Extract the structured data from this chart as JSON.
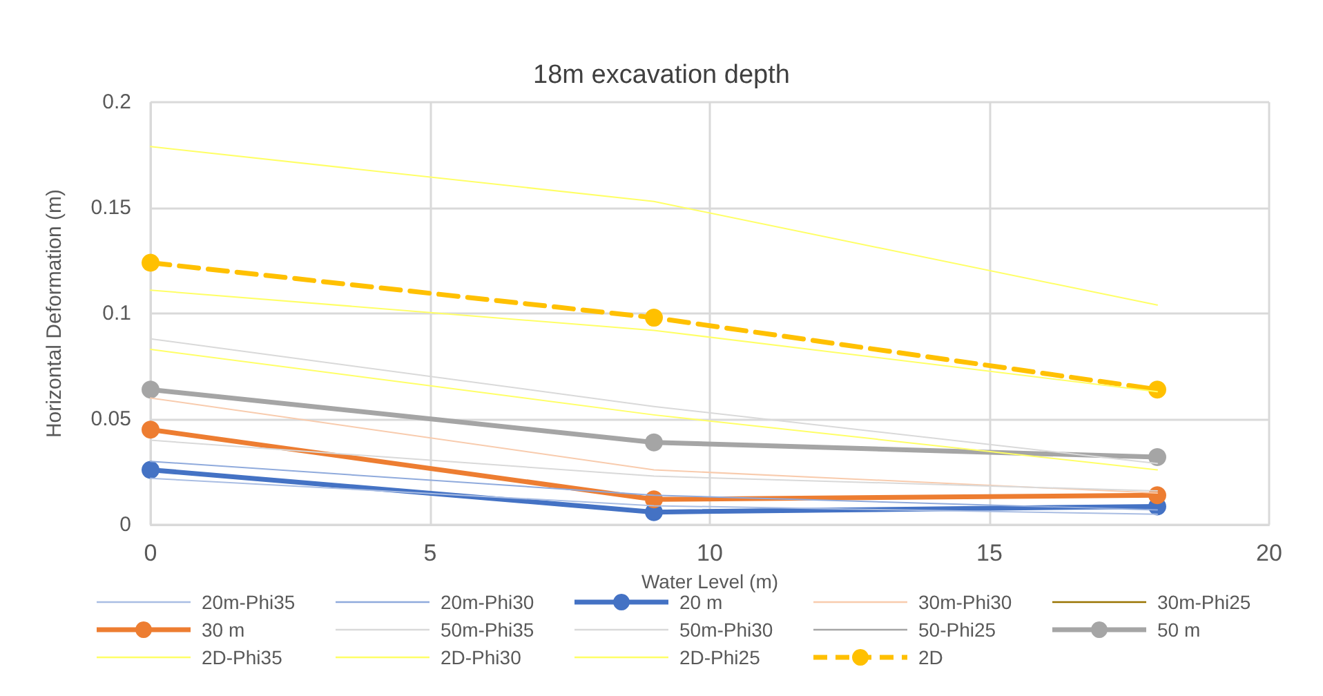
{
  "chart_data": {
    "type": "line",
    "title": "18m excavation depth",
    "xlabel": "Water Level (m)",
    "ylabel": "Horizontal Deformation (m)",
    "x": [
      0,
      9,
      18
    ],
    "xlim": [
      0,
      20
    ],
    "xticks": [
      0,
      5,
      10,
      15,
      20
    ],
    "ylim": [
      0,
      0.2
    ],
    "yticks": [
      0,
      0.05,
      0.1,
      0.15,
      0.2
    ],
    "grid": true,
    "legend": "bottom",
    "marker": "none",
    "line_style": "solid",
    "series": [
      {
        "name": "20m-Phi35",
        "color": "#a9bde3",
        "values": [
          0.022,
          0.009,
          0.005
        ]
      },
      {
        "name": "20m-Phi30",
        "color": "#8faadc",
        "values": [
          0.03,
          0.014,
          0.007
        ]
      },
      {
        "name": "20 m",
        "color": "#4472c4",
        "values": [
          0.026,
          0.006,
          0.0087
        ],
        "marker": "circle"
      },
      {
        "name": "30m-Phi30",
        "color": "#f8cbad",
        "values": [
          0.06,
          0.026,
          0.015
        ]
      },
      {
        "name": "30m-Phi25",
        "color": "#997300",
        "values": [
          null,
          null,
          null
        ]
      },
      {
        "name": "30 m",
        "color": "#ed7d31",
        "values": [
          0.045,
          0.012,
          0.014
        ],
        "marker": "circle"
      },
      {
        "name": "50m-Phi35",
        "color": "#d9d9d9",
        "values": [
          0.04,
          0.023,
          0.016
        ]
      },
      {
        "name": "50m-Phi30",
        "color": "#d9d9d9",
        "values": [
          0.088,
          0.056,
          0.029
        ]
      },
      {
        "name": "50-Phi25",
        "color": "#a5a5a5",
        "values": [
          null,
          null,
          null
        ]
      },
      {
        "name": "50 m",
        "color": "#a5a5a5",
        "values": [
          0.064,
          0.039,
          0.032
        ],
        "marker": "circle"
      },
      {
        "name": "2D-Phi35",
        "color": "#ffff66",
        "values": [
          0.083,
          0.052,
          0.026
        ]
      },
      {
        "name": "2D-Phi30",
        "color": "#ffff66",
        "values": [
          0.111,
          0.092,
          0.063
        ]
      },
      {
        "name": "2D-Phi25",
        "color": "#ffff66",
        "values": [
          0.179,
          0.153,
          0.104
        ]
      },
      {
        "name": "2D",
        "color": "#ffc000",
        "values": [
          0.124,
          0.098,
          0.064
        ],
        "marker": "circle",
        "line_style": "dashed"
      }
    ]
  }
}
